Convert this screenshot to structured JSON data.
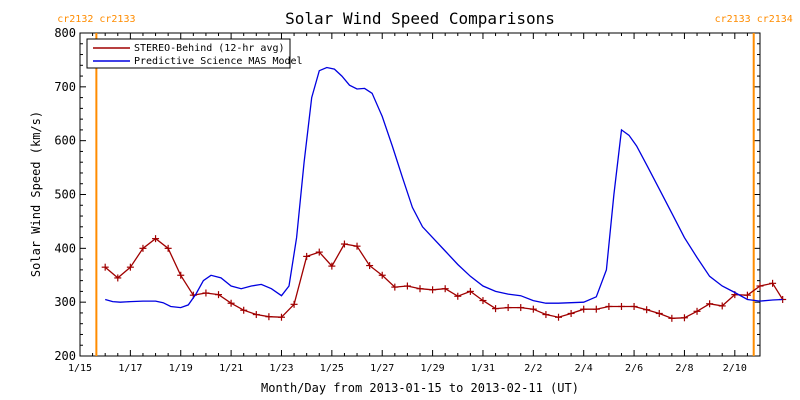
{
  "colors": {
    "stereo": "#a00000",
    "model": "#0000e0",
    "marker": "#ff8c00",
    "axis": "#000000"
  },
  "chart_data": {
    "type": "line",
    "title": "Solar Wind Speed Comparisons",
    "xlabel": "Month/Day from 2013-01-15 to 2013-02-11 (UT)",
    "ylabel": "Solar Wind Speed (km/s)",
    "xlim": [
      0,
      27
    ],
    "ylim": [
      200,
      800
    ],
    "x_ticks": [
      {
        "x": 0,
        "label": "1/15"
      },
      {
        "x": 2,
        "label": "1/17"
      },
      {
        "x": 4,
        "label": "1/19"
      },
      {
        "x": 6,
        "label": "1/21"
      },
      {
        "x": 8,
        "label": "1/23"
      },
      {
        "x": 10,
        "label": "1/25"
      },
      {
        "x": 12,
        "label": "1/27"
      },
      {
        "x": 14,
        "label": "1/29"
      },
      {
        "x": 16,
        "label": "1/31"
      },
      {
        "x": 18,
        "label": "2/2"
      },
      {
        "x": 20,
        "label": "2/4"
      },
      {
        "x": 22,
        "label": "2/6"
      },
      {
        "x": 24,
        "label": "2/8"
      },
      {
        "x": 26,
        "label": "2/10"
      }
    ],
    "y_ticks": [
      200,
      300,
      400,
      500,
      600,
      700,
      800
    ],
    "legend_position": "top-left",
    "carrington_markers": [
      {
        "x": 0.65,
        "left_label": "cr2132",
        "right_label": "cr2133"
      },
      {
        "x": 26.75,
        "left_label": "cr2133",
        "right_label": "cr2134"
      }
    ],
    "series": [
      {
        "name": "STEREO-Behind (12-hr avg)",
        "color_key": "stereo",
        "markers": true,
        "x": [
          1.0,
          1.5,
          2.0,
          2.5,
          3.0,
          3.5,
          4.0,
          4.5,
          5.0,
          5.5,
          6.0,
          6.5,
          7.0,
          7.5,
          8.0,
          8.5,
          9.0,
          9.5,
          10.0,
          10.5,
          11.0,
          11.5,
          12.0,
          12.5,
          13.0,
          13.5,
          14.0,
          14.5,
          15.0,
          15.5,
          16.0,
          16.5,
          17.0,
          17.5,
          18.0,
          18.5,
          19.0,
          19.5,
          20.0,
          20.5,
          21.0,
          21.5,
          22.0,
          22.5,
          23.0,
          23.5,
          24.0,
          24.5,
          25.0,
          25.5,
          26.0,
          26.5,
          27.0,
          27.5,
          27.9
        ],
        "y": [
          365,
          345,
          365,
          400,
          418,
          400,
          350,
          313,
          317,
          314,
          298,
          285,
          277,
          273,
          272,
          296,
          385,
          393,
          367,
          408,
          404,
          368,
          350,
          328,
          330,
          325,
          323,
          325,
          311,
          320,
          303,
          288,
          290,
          290,
          287,
          277,
          272,
          279,
          287,
          287,
          292,
          292,
          292,
          286,
          279,
          270,
          271,
          283,
          297,
          293,
          314,
          313,
          330,
          335,
          305
        ]
      },
      {
        "name": "Predictive Science MAS Model",
        "color_key": "model",
        "markers": false,
        "x": [
          1.0,
          1.3,
          1.6,
          2.0,
          2.5,
          3.0,
          3.3,
          3.6,
          4.0,
          4.3,
          4.6,
          4.9,
          5.2,
          5.6,
          6.0,
          6.4,
          6.8,
          7.2,
          7.6,
          8.0,
          8.3,
          8.6,
          8.9,
          9.2,
          9.5,
          9.8,
          10.1,
          10.4,
          10.7,
          11.0,
          11.3,
          11.6,
          12.0,
          12.4,
          12.8,
          13.2,
          13.6,
          14.0,
          14.5,
          15.0,
          15.5,
          16.0,
          16.5,
          17.0,
          17.5,
          18.0,
          18.5,
          19.0,
          19.5,
          20.0,
          20.5,
          20.9,
          21.2,
          21.5,
          21.8,
          22.1,
          22.5,
          23.0,
          23.5,
          24.0,
          24.5,
          25.0,
          25.5,
          26.0,
          26.5,
          27.0,
          27.5,
          27.9
        ],
        "y": [
          305,
          301,
          300,
          301,
          302,
          302,
          299,
          292,
          290,
          295,
          315,
          340,
          350,
          345,
          330,
          325,
          330,
          333,
          325,
          312,
          330,
          420,
          560,
          680,
          730,
          736,
          733,
          720,
          703,
          696,
          697,
          688,
          645,
          590,
          532,
          476,
          440,
          420,
          395,
          370,
          348,
          330,
          320,
          315,
          312,
          303,
          298,
          298,
          299,
          300,
          310,
          360,
          500,
          620,
          610,
          590,
          555,
          510,
          465,
          420,
          383,
          348,
          330,
          318,
          305,
          302,
          304,
          305
        ]
      }
    ]
  }
}
